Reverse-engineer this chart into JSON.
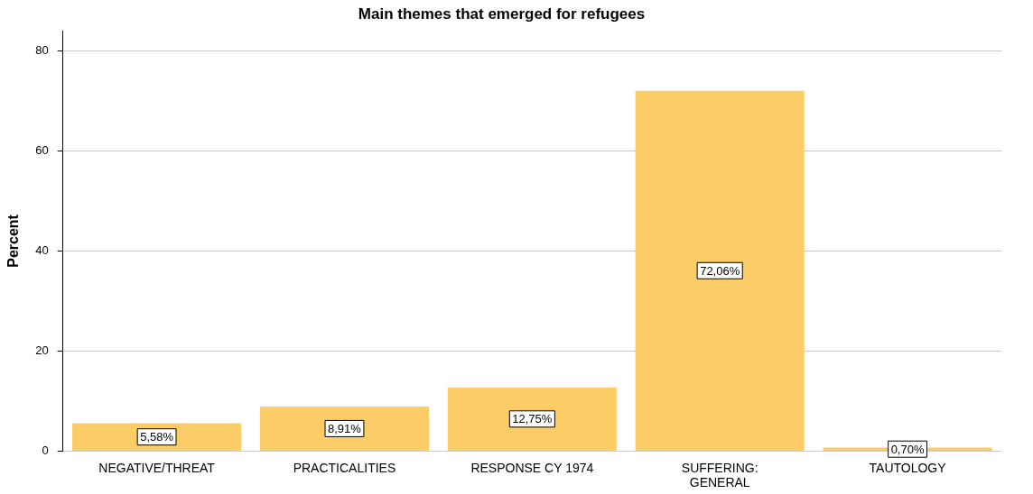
{
  "chart_data": {
    "type": "bar",
    "title": "Main themes that emerged for refugees",
    "ylabel": "Percent",
    "categories": [
      "NEGATIVE/THREAT",
      "PRACTICALITIES",
      "RESPONSE CY 1974",
      "SUFFERING: GENERAL",
      "TAUTOLOGY"
    ],
    "values": [
      5.58,
      8.91,
      12.75,
      72.06,
      0.7
    ],
    "value_labels": [
      "5,58%",
      "8,91%",
      "12,75%",
      "72,06%",
      "0,70%"
    ],
    "color": "#fccc66",
    "ylim": [
      0,
      84
    ],
    "yticks": [
      0,
      20,
      40,
      60,
      80
    ],
    "grid": "y",
    "legend": false
  }
}
